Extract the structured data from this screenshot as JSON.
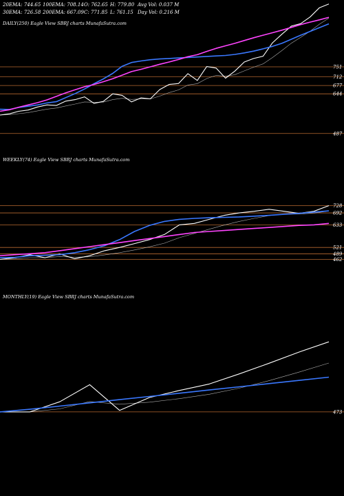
{
  "header": {
    "row1": [
      {
        "label": "20EMA:",
        "value": "744.65"
      },
      {
        "label": "100EMA:",
        "value": "708.14"
      },
      {
        "label": "O:",
        "value": "762.65"
      },
      {
        "label": "H:",
        "value": "779.80"
      },
      {
        "label": "Avg Vol:",
        "value": "0.037 M"
      }
    ],
    "row2": [
      {
        "label": "30EMA:",
        "value": "726.58"
      },
      {
        "label": "200EMA:",
        "value": "667.09"
      },
      {
        "label": "C:",
        "value": "771.85"
      },
      {
        "label": "L:",
        "value": "761.15"
      },
      {
        "label": "Day Vol:",
        "value": "0.216  M"
      }
    ]
  },
  "colors": {
    "background": "#000000",
    "price": "#ffffff",
    "ema_fast": "#3a78ff",
    "ema_slow": "#ff44ff",
    "ema_mid": "#dddddd",
    "level_line": "#b86a30"
  },
  "chart_data": [
    {
      "type": "line",
      "title": "DAILY(250) Eagle  View  SBRJ charts MunafaSutra.com",
      "levels": [
        751,
        712,
        677,
        644,
        487
      ],
      "series": [
        {
          "role": "price",
          "values": [
            560,
            565,
            575,
            580,
            592,
            600,
            598,
            615,
            621,
            632,
            606,
            614,
            644,
            638,
            612,
            628,
            624,
            661,
            681,
            685,
            724,
            697,
            752,
            746,
            706,
            734,
            770,
            784,
            793,
            846,
            880,
            912,
            922,
            948,
            985,
            1000
          ]
        },
        {
          "role": "ema_fast",
          "values": [
            583,
            582,
            590,
            595,
            600,
            608,
            613,
            629,
            645,
            663,
            684,
            703,
            725,
            753,
            768,
            774,
            779,
            782,
            784,
            786,
            788,
            790,
            792,
            794,
            796,
            800,
            806,
            813,
            822,
            832,
            844,
            860,
            876,
            891,
            906,
            921
          ]
        },
        {
          "role": "ema_slow",
          "values": [
            575,
            581,
            591,
            600,
            609,
            620,
            634,
            648,
            660,
            672,
            681,
            692,
            704,
            718,
            732,
            741,
            751,
            761,
            770,
            780,
            791,
            799,
            812,
            824,
            834,
            844,
            855,
            866,
            876,
            886,
            896,
            907,
            918,
            928,
            937,
            947
          ]
        }
      ]
    },
    {
      "type": "line",
      "title": "WEEKLY(74) Eagle  View  SBRJ charts MunafaSutra.com",
      "levels": [
        728,
        692,
        633,
        521,
        489,
        462
      ],
      "series": [
        {
          "role": "price",
          "values": [
            462,
            470,
            485,
            470,
            489,
            465,
            480,
            505,
            521,
            540,
            560,
            585,
            633,
            640,
            660,
            680,
            692,
            700,
            710,
            700,
            690,
            700,
            728
          ]
        },
        {
          "role": "ema_fast",
          "values": [
            470,
            472,
            480,
            482,
            485,
            495,
            510,
            530,
            560,
            600,
            630,
            650,
            660,
            665,
            668,
            670,
            672,
            676,
            680,
            685,
            690,
            696,
            702
          ]
        },
        {
          "role": "ema_slow",
          "values": [
            480,
            485,
            490,
            495,
            505,
            515,
            525,
            535,
            545,
            555,
            565,
            575,
            585,
            595,
            600,
            605,
            610,
            615,
            620,
            625,
            630,
            633,
            640
          ]
        }
      ]
    },
    {
      "type": "line",
      "title": "MONTHLY(19) Eagle  View  SBRJ charts MunafaSutra.com",
      "levels": [
        473
      ],
      "series": [
        {
          "role": "price",
          "values": [
            473,
            473,
            520,
            600,
            480,
            540,
            573,
            603,
            650,
            700,
            752,
            800
          ]
        },
        {
          "role": "ema_fast",
          "values": [
            473,
            485,
            500,
            515,
            530,
            545,
            560,
            575,
            590,
            605,
            620,
            635
          ]
        }
      ]
    }
  ]
}
